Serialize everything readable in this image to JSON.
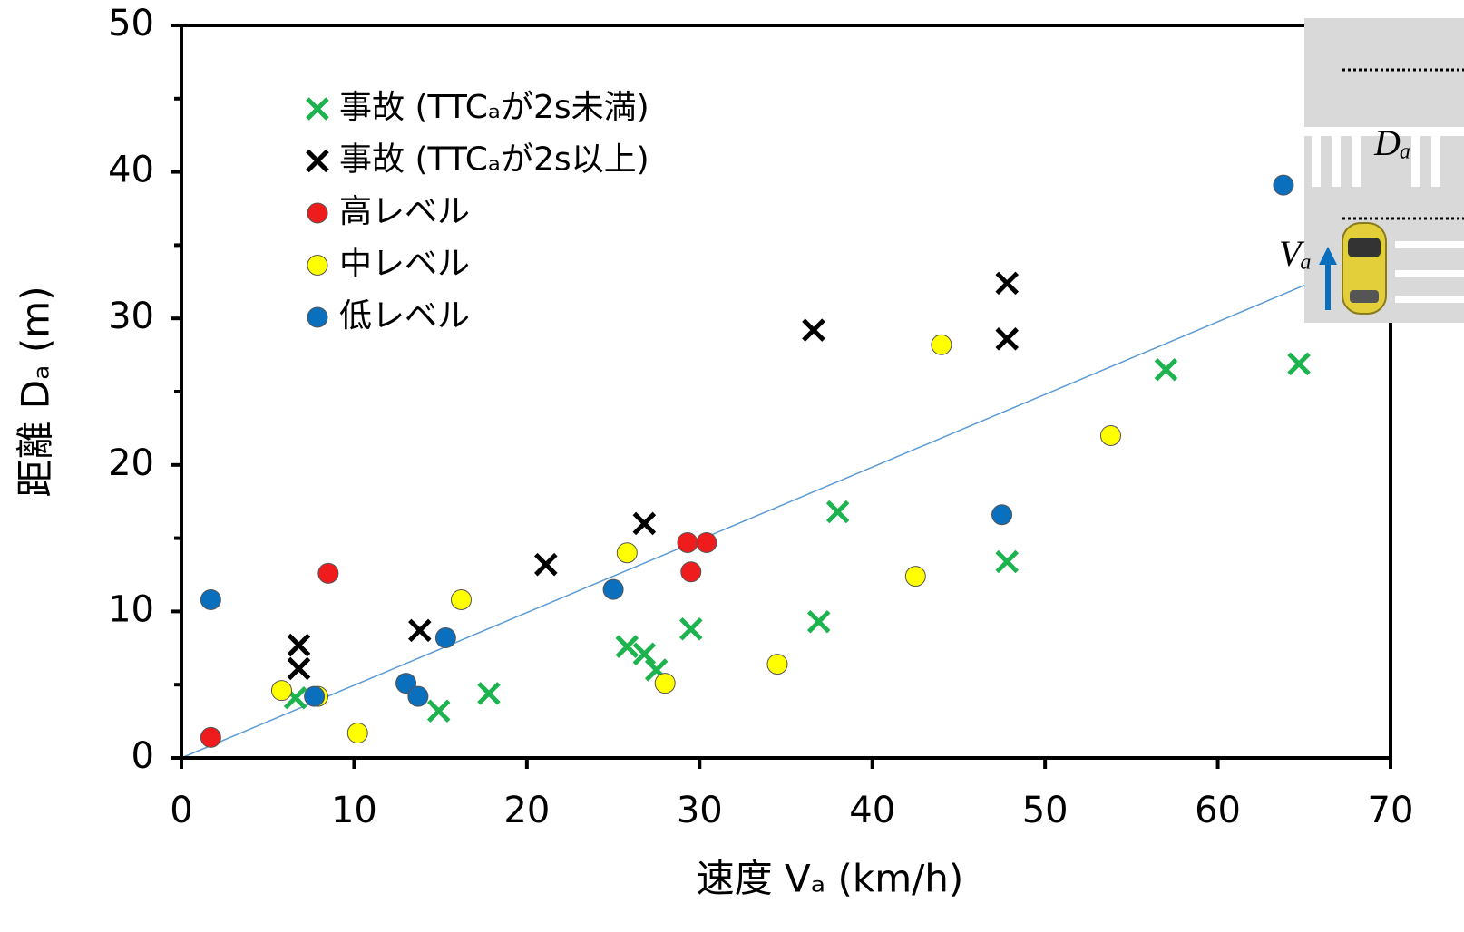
{
  "chart_data": {
    "type": "scatter",
    "xlabel": "速度 Vₐ (km/h)",
    "ylabel": "距離 Dₐ (m)",
    "xlim": [
      0,
      70
    ],
    "ylim": [
      0,
      50
    ],
    "xticks": [
      0,
      10,
      20,
      30,
      40,
      50,
      60,
      70
    ],
    "yticks": [
      0,
      10,
      20,
      30,
      40,
      50
    ],
    "yminorticks": [
      5,
      15,
      25,
      35,
      45
    ],
    "legend": "upper left",
    "series": [
      {
        "name": "事故 (TTCₐが2s未満)",
        "marker": "x",
        "color": "#1db34f",
        "x": [
          6.6,
          14.9,
          17.8,
          25.8,
          26.8,
          27.5,
          29.5,
          36.9,
          38.0,
          47.8,
          57.0,
          64.7
        ],
        "values": [
          4.1,
          3.2,
          4.4,
          7.6,
          7.1,
          6.0,
          8.8,
          9.3,
          16.8,
          13.4,
          26.5,
          26.9
        ]
      },
      {
        "name": "事故 (TTCₐが2s以上)",
        "marker": "x",
        "color": "#000000",
        "x": [
          6.8,
          6.8,
          13.8,
          21.1,
          26.8,
          36.6,
          47.8,
          47.8
        ],
        "values": [
          7.7,
          6.1,
          8.7,
          13.2,
          16.0,
          29.2,
          32.4,
          28.6
        ]
      },
      {
        "name": "高レベル",
        "marker": "circle",
        "color": "#ee1c1c",
        "x": [
          1.7,
          8.5,
          29.3,
          30.4,
          29.5
        ],
        "values": [
          1.4,
          12.6,
          14.7,
          14.7,
          12.7
        ]
      },
      {
        "name": "中レベル",
        "marker": "circle",
        "color": "#ffff00",
        "x": [
          5.8,
          7.9,
          10.2,
          16.2,
          25.8,
          28.0,
          34.5,
          42.5,
          44.0,
          53.8
        ],
        "values": [
          4.6,
          4.2,
          1.7,
          10.8,
          14.0,
          5.1,
          6.4,
          12.4,
          28.2,
          22.0
        ]
      },
      {
        "name": "低レベル",
        "marker": "circle",
        "color": "#0a6fbd",
        "x": [
          1.7,
          7.7,
          13.0,
          13.7,
          15.3,
          25.0,
          47.5,
          63.8
        ],
        "values": [
          10.8,
          4.2,
          5.1,
          4.2,
          8.2,
          11.5,
          16.6,
          39.1
        ]
      }
    ],
    "trendline": {
      "color": "#5b9bd5",
      "x": [
        0,
        66.3
      ],
      "y": [
        0,
        32.9
      ]
    }
  },
  "inset": {
    "distance_label": "Dₐ",
    "speed_label": "Vₐ"
  }
}
